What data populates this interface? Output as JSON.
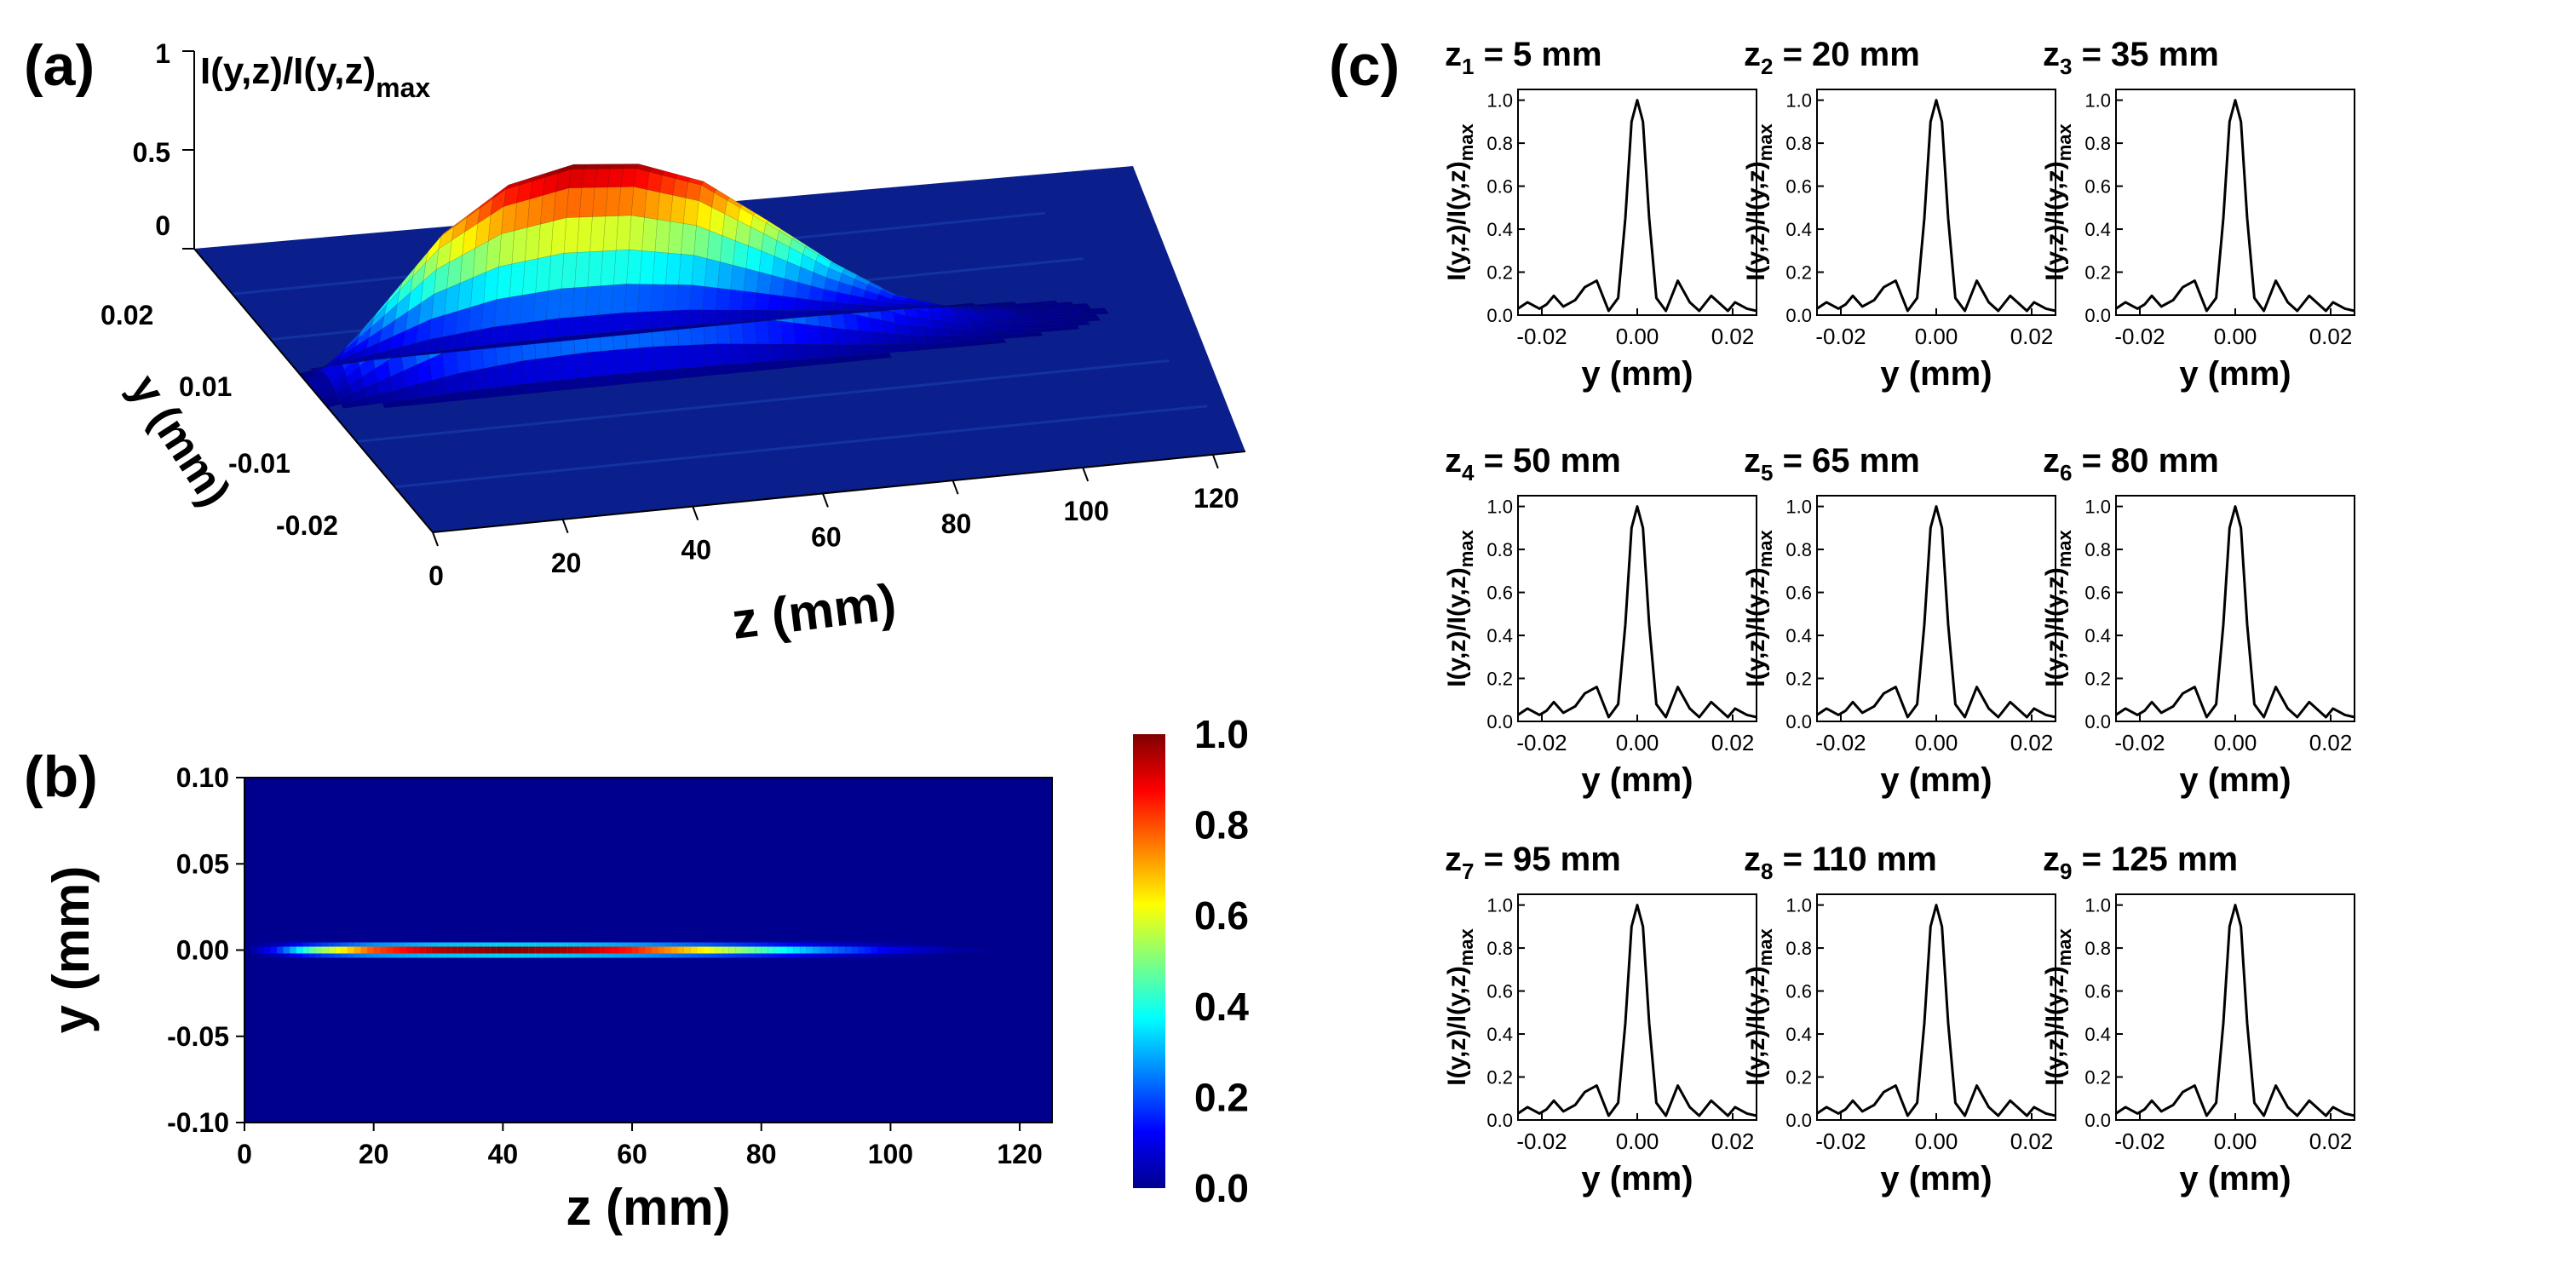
{
  "panels": {
    "a": {
      "label": "(a)",
      "zlabel_main": "I(y,z)/I(y,z)",
      "zlabel_sub": "max",
      "ylabel": "y (mm)",
      "xlabel": "z (mm)",
      "xticks": [
        "0",
        "20",
        "40",
        "60",
        "80",
        "100",
        "120"
      ],
      "yticks": [
        "0.02",
        "0.01",
        "-0.01",
        "-0.02"
      ],
      "zticks": [
        "1",
        "0.5",
        "0"
      ]
    },
    "b": {
      "label": "(b)",
      "xlabel": "z (mm)",
      "ylabel": "y (mm)",
      "xticks": [
        "0",
        "20",
        "40",
        "60",
        "80",
        "100",
        "120"
      ],
      "yticks": [
        "0.10",
        "0.05",
        "0.00",
        "-0.05",
        "-0.10"
      ],
      "colorbar_ticks": [
        "1.0",
        "0.8",
        "0.6",
        "0.4",
        "0.2",
        "0.0"
      ]
    },
    "c": {
      "label": "(c)",
      "xlabel": "y (mm)",
      "ylabel_main": "I(y,z)/I(y,z)",
      "ylabel_sub": "max",
      "xticks": [
        "-0.02",
        "0.00",
        "0.02"
      ],
      "yticks": [
        "1.0",
        "0.8",
        "0.6",
        "0.4",
        "0.2",
        "0.0"
      ],
      "subplots": [
        {
          "z": "z",
          "sub": "1",
          "rest": " = 5 mm"
        },
        {
          "z": "z",
          "sub": "2",
          "rest": " = 20 mm"
        },
        {
          "z": "z",
          "sub": "3",
          "rest": " = 35 mm"
        },
        {
          "z": "z",
          "sub": "4",
          "rest": " = 50 mm"
        },
        {
          "z": "z",
          "sub": "5",
          "rest": " = 65 mm"
        },
        {
          "z": "z",
          "sub": "6",
          "rest": " = 80 mm"
        },
        {
          "z": "z",
          "sub": "7",
          "rest": " = 95 mm"
        },
        {
          "z": "z",
          "sub": "8",
          "rest": " = 110 mm"
        },
        {
          "z": "z",
          "sub": "9",
          "rest": " = 125 mm"
        }
      ]
    }
  },
  "chart_data": [
    {
      "type": "area",
      "panel": "a",
      "x_name": "z (mm)",
      "y_name": "y (mm)",
      "z_name": "I(y,z)/I(y,z)max",
      "xlim": [
        0,
        125
      ],
      "ylim": [
        -0.025,
        0.025
      ],
      "zlim": [
        0,
        1
      ],
      "axial_profile": {
        "z": [
          0,
          10,
          20,
          30,
          40,
          50,
          60,
          70,
          80,
          90,
          100,
          110,
          125
        ],
        "peak": [
          0.0,
          0.35,
          0.72,
          0.93,
          1.0,
          0.97,
          0.85,
          0.62,
          0.38,
          0.18,
          0.07,
          0.02,
          0.0
        ]
      }
    },
    {
      "type": "heatmap",
      "panel": "b",
      "xlim": [
        0,
        125
      ],
      "ylim": [
        -0.1,
        0.1
      ],
      "color_range": [
        0,
        1
      ],
      "axial_profile": {
        "z": [
          0,
          5,
          10,
          20,
          30,
          40,
          50,
          60,
          70,
          80,
          90,
          100,
          110,
          125
        ],
        "peak": [
          0.0,
          0.15,
          0.45,
          0.8,
          0.95,
          1.0,
          0.96,
          0.85,
          0.65,
          0.45,
          0.25,
          0.1,
          0.03,
          0.0
        ]
      }
    },
    {
      "type": "line",
      "panel": "c",
      "xlim": [
        -0.025,
        0.025
      ],
      "ylim": [
        0,
        1.05
      ],
      "series_note_free": true,
      "x": [
        -0.025,
        -0.023,
        -0.0205,
        -0.019,
        -0.0175,
        -0.0155,
        -0.013,
        -0.011,
        -0.0085,
        -0.006,
        -0.004,
        -0.0025,
        -0.0012,
        0,
        0.0012,
        0.0025,
        0.004,
        0.006,
        0.0085,
        0.011,
        0.013,
        0.0155,
        0.0175,
        0.019,
        0.0205,
        0.023,
        0.025
      ],
      "y": [
        0.03,
        0.06,
        0.03,
        0.05,
        0.09,
        0.04,
        0.07,
        0.13,
        0.16,
        0.02,
        0.08,
        0.45,
        0.9,
        1.0,
        0.9,
        0.45,
        0.08,
        0.02,
        0.16,
        0.06,
        0.02,
        0.09,
        0.05,
        0.02,
        0.06,
        0.03,
        0.02
      ]
    }
  ]
}
